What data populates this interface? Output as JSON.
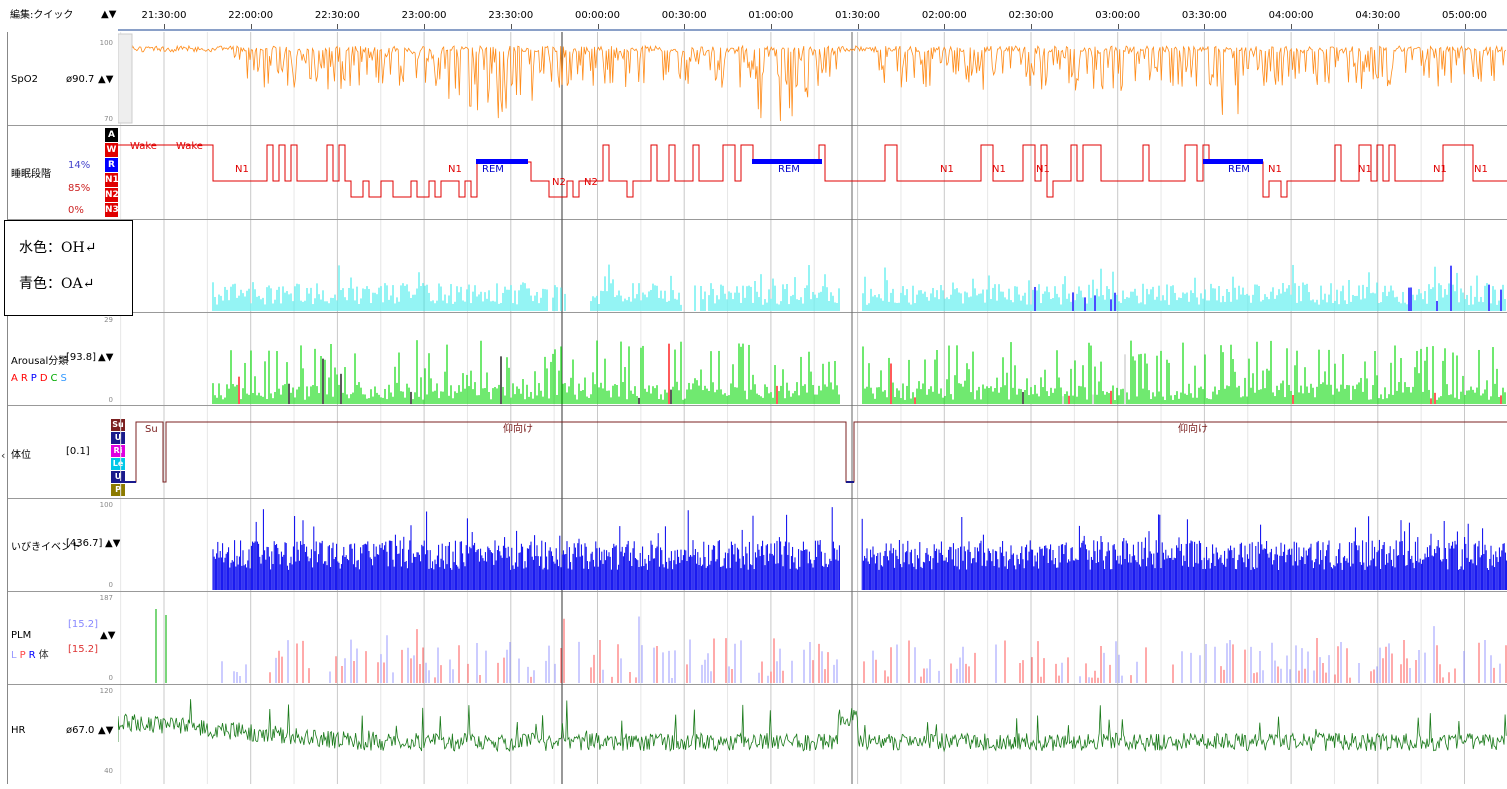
{
  "header": {
    "edit_label": "編集:クイック",
    "arrows": "▲▼",
    "times": [
      "21:30:00",
      "22:00:00",
      "22:30:00",
      "23:00:00",
      "23:30:00",
      "00:00:00",
      "00:30:00",
      "01:00:00",
      "01:30:00",
      "02:00:00",
      "02:30:00",
      "03:00:00",
      "03:30:00",
      "04:00:00",
      "04:30:00",
      "05:00:00"
    ]
  },
  "channels": {
    "spo2": {
      "name": "SpO2",
      "value": "ø90.7",
      "arrows": "▲▼",
      "scale_max": "100",
      "scale_min": "70",
      "color": "#ff8c1a"
    },
    "sleep": {
      "name": "睡眠段階",
      "pct1": "14%",
      "pct2": "85%",
      "pct3": "0%",
      "stages": [
        "A",
        "W",
        "R",
        "N1",
        "N2",
        "N3"
      ],
      "stage_colors": [
        "#000000",
        "#e00000",
        "#0000ff",
        "#e00000",
        "#e00000",
        "#e00000"
      ],
      "labels": [
        "Wake",
        "Wake",
        "N1",
        "N1",
        "REM",
        "N2",
        "N2",
        "REM",
        "N1",
        "N1",
        "N1",
        "REM",
        "N1",
        "N1",
        "N1",
        "N1"
      ]
    },
    "resp": {
      "oh_color": "#66f0f0",
      "oa_color": "#0000ff"
    },
    "arousal": {
      "name": "Arousal分類",
      "value": "[93.8]",
      "arrows": "▲▼",
      "scale_max": "29",
      "scale_min": "0",
      "legend": [
        "A",
        "R",
        "P",
        "D",
        "C",
        "S"
      ],
      "legend_colors": [
        "#ff0000",
        "#ff0000",
        "#0000ff",
        "#ff0000",
        "#00aa00",
        "#3399ff"
      ]
    },
    "position": {
      "name": "体位",
      "value": "[0.1]",
      "boxes": [
        "Su",
        "U",
        "Ri",
        "Le",
        "U",
        "P"
      ],
      "box_colors": [
        "#7b2020",
        "#1a1a8c",
        "#e000e0",
        "#00c8e8",
        "#1a1a8c",
        "#8c7a00"
      ],
      "seg_labels": [
        "Su",
        "仰向け",
        "仰向け"
      ]
    },
    "snore": {
      "name": "いびきイベント",
      "value": "[436.7]",
      "arrows": "▲▼",
      "scale_max": "100",
      "scale_min": "0"
    },
    "plm": {
      "name": "PLM",
      "value1": "[15.2]",
      "value2": "[15.2]",
      "arrows": "▲▼",
      "scale_max": "187",
      "scale_min": "0",
      "legend": [
        "L",
        "P",
        "R",
        "体"
      ],
      "legend_colors": [
        "#9999ff",
        "#ff4444",
        "#0000ff",
        "#333333"
      ]
    },
    "hr": {
      "name": "HR",
      "value": "ø67.0",
      "arrows": "▲▼",
      "scale_max": "120",
      "scale_min": "40",
      "color": "#1a7a1a"
    }
  },
  "note": {
    "line1": "水色：OH↵",
    "line2": "青色：OA↵"
  },
  "collapse_icon": "‹"
}
